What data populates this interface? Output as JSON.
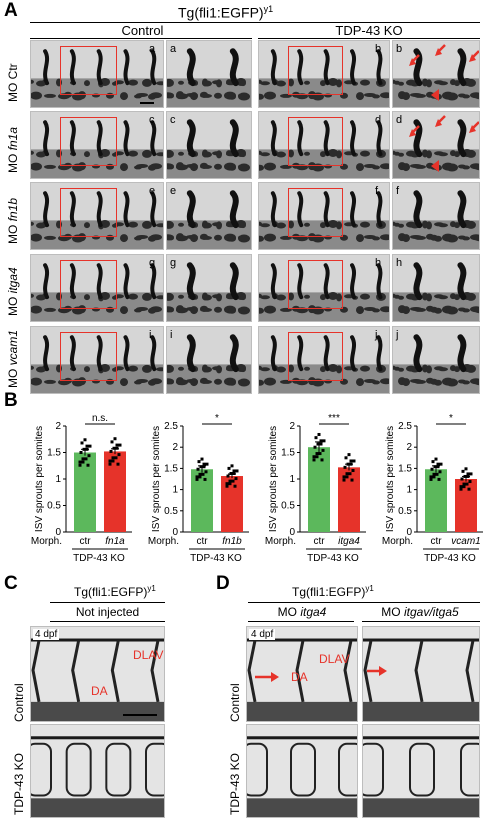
{
  "panels": {
    "A": "A",
    "B": "B",
    "C": "C",
    "D": "D"
  },
  "panelA": {
    "title": "Tg(fli1:EGFP)",
    "title_sup": "y1",
    "col_control": "Control",
    "col_ko": "TDP-43 KO",
    "rows": [
      {
        "prefix": "MO",
        "gene": "Ctr",
        "italic": false,
        "letters": [
          "a",
          "a",
          "b",
          "b"
        ]
      },
      {
        "prefix": "MO",
        "gene": "fn1a",
        "italic": true,
        "letters": [
          "c",
          "c",
          "d",
          "d"
        ]
      },
      {
        "prefix": "MO",
        "gene": "fn1b",
        "italic": true,
        "letters": [
          "e",
          "e",
          "f",
          "f"
        ]
      },
      {
        "prefix": "MO",
        "gene": "itga4",
        "italic": true,
        "letters": [
          "g",
          "g",
          "h",
          "h"
        ]
      },
      {
        "prefix": "MO",
        "gene": "vcam1",
        "italic": true,
        "letters": [
          "i",
          "i",
          "j",
          "j"
        ]
      }
    ]
  },
  "chart_data": [
    {
      "type": "bar",
      "ylabel": "ISV sprouts per somites",
      "ylim": [
        0,
        2.0
      ],
      "yticks": [
        0,
        0.5,
        1.0,
        1.5,
        2.0
      ],
      "categories": [
        "ctr",
        "fn1a"
      ],
      "values": [
        1.5,
        1.52
      ],
      "errors": [
        0.06,
        0.05
      ],
      "colors": [
        "#5cb85c",
        "#e6332a"
      ],
      "significance": "n.s.",
      "morph_label": "Morph.",
      "group_label": "TDP-43 KO",
      "italic_second": true
    },
    {
      "type": "bar",
      "ylabel": "ISV sprouts per somites",
      "ylim": [
        0,
        2.5
      ],
      "yticks": [
        0,
        0.5,
        1.0,
        1.5,
        2.0,
        2.5
      ],
      "categories": [
        "ctr",
        "fn1b"
      ],
      "values": [
        1.48,
        1.32
      ],
      "errors": [
        0.08,
        0.05
      ],
      "colors": [
        "#5cb85c",
        "#e6332a"
      ],
      "significance": "*",
      "morph_label": "Morph.",
      "group_label": "TDP-43 KO",
      "italic_second": true
    },
    {
      "type": "bar",
      "ylabel": "ISV sprouts per somites",
      "ylim": [
        0,
        2.0
      ],
      "yticks": [
        0,
        0.5,
        1.0,
        1.5,
        2.0
      ],
      "categories": [
        "ctr",
        "itga4"
      ],
      "values": [
        1.6,
        1.22
      ],
      "errors": [
        0.1,
        0.06
      ],
      "colors": [
        "#5cb85c",
        "#e6332a"
      ],
      "significance": "***",
      "morph_label": "Morph.",
      "group_label": "TDP-43 KO",
      "italic_second": true
    },
    {
      "type": "bar",
      "ylabel": "ISV sprouts per somites",
      "ylim": [
        0,
        2.5
      ],
      "yticks": [
        0,
        0.5,
        1.0,
        1.5,
        2.0,
        2.5
      ],
      "categories": [
        "ctr",
        "vcam1"
      ],
      "values": [
        1.48,
        1.25
      ],
      "errors": [
        0.08,
        0.06
      ],
      "colors": [
        "#5cb85c",
        "#e6332a"
      ],
      "significance": "*",
      "morph_label": "Morph.",
      "group_label": "TDP-43 KO",
      "italic_second": true
    }
  ],
  "panelC": {
    "title": "Tg(fli1:EGFP)",
    "title_sup": "y1",
    "header": "Not injected",
    "row1": "Control",
    "row2": "TDP-43 KO",
    "dpf": "4 dpf",
    "lab1": "DLAV",
    "lab2": "DA"
  },
  "panelD": {
    "title": "Tg(fli1:EGFP)",
    "title_sup": "y1",
    "h1_prefix": "MO",
    "h1_gene": "itga4",
    "h2_prefix": "MO",
    "h2_gene": "itgav/itga5",
    "row1": "Control",
    "row2": "TDP-43 KO",
    "dpf": "4 dpf",
    "lab1": "DLAV",
    "lab2": "DA"
  },
  "colors": {
    "red": "#e6332a",
    "green": "#5cb85c"
  }
}
